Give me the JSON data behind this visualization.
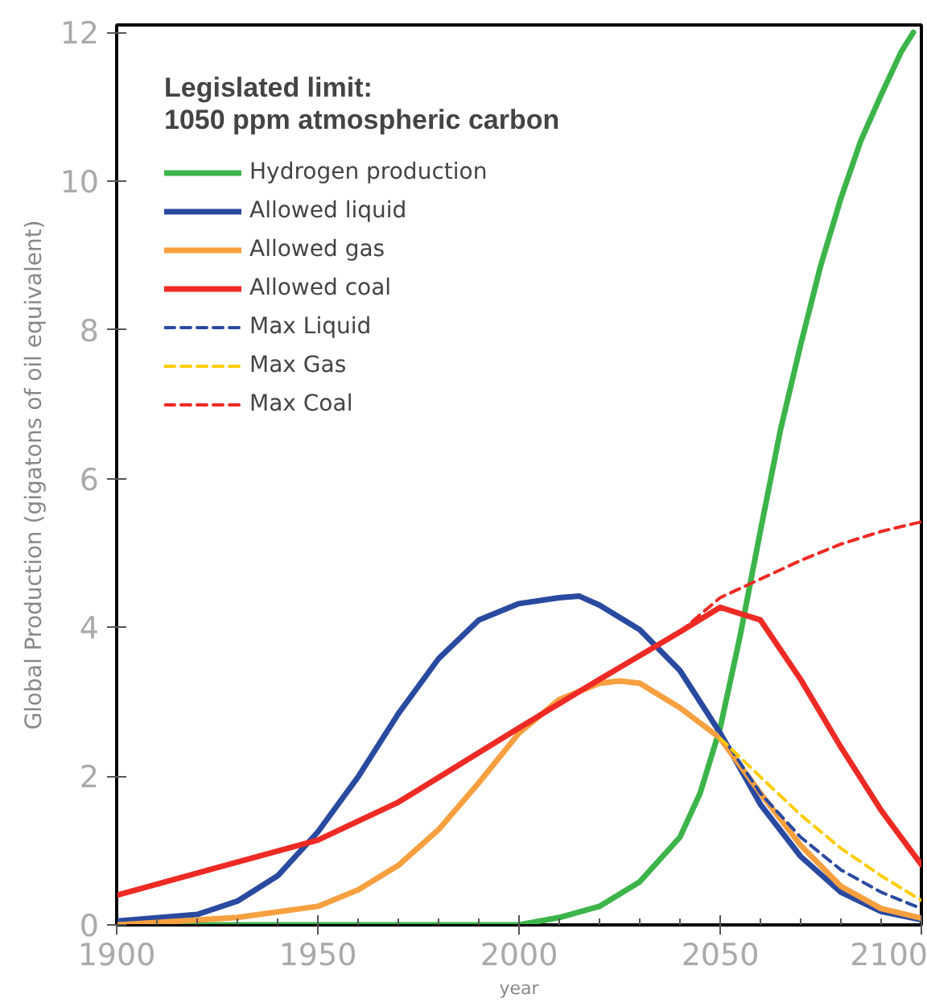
{
  "chart_data": {
    "type": "line",
    "xlabel": "year",
    "ylabel": "Global Production (gigatons of oil equivalent)",
    "legend_title": "Legislated limit:\n1050 ppm atmospheric carbon",
    "xlim": [
      1900,
      2100
    ],
    "ylim": [
      0,
      12.1
    ],
    "xticks": [
      1900,
      1950,
      2000,
      2050,
      2100
    ],
    "yticks": [
      0,
      2,
      4,
      6,
      8,
      10,
      12
    ],
    "grid": false,
    "legend": "top left",
    "series": [
      {
        "name": "Hydrogen production",
        "color": "#3cb44a",
        "x": [
          1900,
          1950,
          2000,
          2010,
          2020,
          2030,
          2040,
          2045,
          2050,
          2055,
          2060,
          2065,
          2070,
          2075,
          2080,
          2085,
          2090,
          2095,
          2098
        ],
        "values": [
          0,
          0,
          0,
          0.1,
          0.25,
          0.58,
          1.18,
          1.77,
          2.65,
          3.9,
          5.3,
          6.66,
          7.8,
          8.87,
          9.77,
          10.55,
          11.16,
          11.74,
          12.0
        ]
      },
      {
        "name": "Allowed liquid",
        "color": "#2a4aa0",
        "x": [
          1900,
          1920,
          1930,
          1940,
          1950,
          1960,
          1970,
          1980,
          1990,
          2000,
          2010,
          2015,
          2020,
          2030,
          2040,
          2050,
          2060,
          2070,
          2080,
          2090,
          2100
        ],
        "values": [
          0.05,
          0.14,
          0.32,
          0.66,
          1.25,
          1.99,
          2.84,
          3.58,
          4.1,
          4.32,
          4.4,
          4.42,
          4.3,
          3.97,
          3.42,
          2.58,
          1.62,
          0.92,
          0.44,
          0.18,
          0.07
        ]
      },
      {
        "name": "Allowed gas",
        "color": "#f7a040",
        "x": [
          1900,
          1930,
          1950,
          1960,
          1970,
          1980,
          1990,
          2000,
          2010,
          2020,
          2025,
          2030,
          2040,
          2050,
          2060,
          2070,
          2080,
          2090,
          2100
        ],
        "values": [
          0,
          0.1,
          0.25,
          0.47,
          0.8,
          1.28,
          1.91,
          2.58,
          3.03,
          3.25,
          3.28,
          3.25,
          2.92,
          2.51,
          1.77,
          1.07,
          0.52,
          0.22,
          0.09
        ]
      },
      {
        "name": "Allowed coal",
        "color": "#ee2a24",
        "x": [
          1900,
          1950,
          1970,
          2000,
          2020,
          2040,
          2050,
          2060,
          2070,
          2080,
          2090,
          2100
        ],
        "values": [
          0.4,
          1.14,
          1.65,
          2.65,
          3.3,
          3.94,
          4.27,
          4.1,
          3.3,
          2.39,
          1.54,
          0.81
        ]
      },
      {
        "name": "Max Liquid",
        "color": "#2a4aa0",
        "line_style": "dashed",
        "x": [
          2050,
          2060,
          2070,
          2080,
          2090,
          2100
        ],
        "values": [
          2.58,
          1.77,
          1.18,
          0.74,
          0.44,
          0.22
        ]
      },
      {
        "name": "Max Gas",
        "color": "#ffcc00",
        "line_style": "dashed",
        "x": [
          2050,
          2060,
          2070,
          2080,
          2090,
          2100
        ],
        "values": [
          2.51,
          1.99,
          1.48,
          1.03,
          0.66,
          0.33
        ]
      },
      {
        "name": "Max Coal",
        "color": "#ee2a24",
        "line_style": "dashed",
        "x": [
          2040,
          2050,
          2060,
          2070,
          2080,
          2090,
          2100
        ],
        "values": [
          3.94,
          4.4,
          4.65,
          4.9,
          5.12,
          5.29,
          5.42
        ]
      }
    ]
  }
}
